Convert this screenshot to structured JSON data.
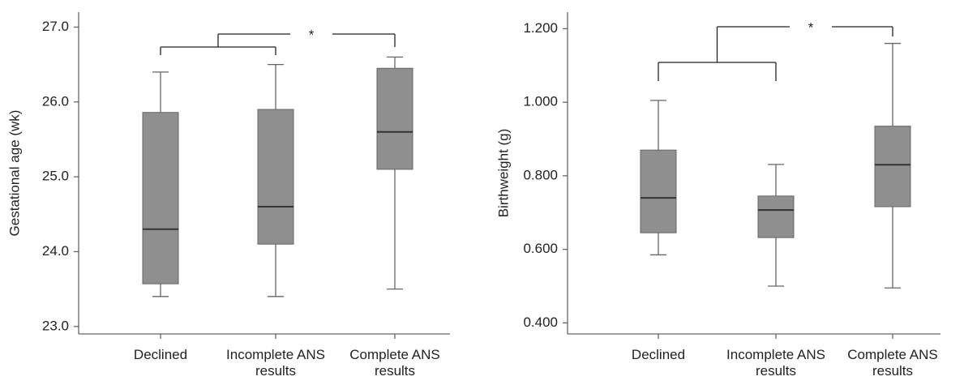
{
  "chart_data": [
    {
      "type": "box",
      "ylabel": "Gestational age (wk)",
      "categories": [
        "Declined",
        "Incomplete ANS results",
        "Complete ANS results"
      ],
      "values": [
        {
          "min": 23.4,
          "q1": 23.57,
          "median": 24.3,
          "q3": 25.86,
          "max": 26.4
        },
        {
          "min": 23.4,
          "q1": 24.1,
          "median": 24.6,
          "q3": 25.9,
          "max": 26.5
        },
        {
          "min": 23.5,
          "q1": 25.1,
          "median": 25.6,
          "q3": 26.45,
          "max": 26.6
        }
      ],
      "color": "#8f8f8f",
      "ylim": [
        22.9,
        27.2
      ],
      "yticks": [
        {
          "value": 23,
          "label": "23.0"
        },
        {
          "value": 24,
          "label": "24.0"
        },
        {
          "value": 25,
          "label": "25.0"
        },
        {
          "value": 26,
          "label": "26.0"
        },
        {
          "value": 27,
          "label": "27.0"
        }
      ],
      "annotation": "*"
    },
    {
      "type": "box",
      "ylabel": "Birthweight (g)",
      "categories": [
        "Declined",
        "Incomplete ANS results",
        "Complete ANS results"
      ],
      "values": [
        {
          "min": 0.585,
          "q1": 0.645,
          "median": 0.74,
          "q3": 0.87,
          "max": 1.005
        },
        {
          "min": 0.5,
          "q1": 0.632,
          "median": 0.707,
          "q3": 0.745,
          "max": 0.831
        },
        {
          "min": 0.495,
          "q1": 0.716,
          "median": 0.83,
          "q3": 0.935,
          "max": 1.16
        }
      ],
      "color": "#8f8f8f",
      "ylim": [
        0.37,
        1.245
      ],
      "yticks": [
        {
          "value": 0.4,
          "label": "0.400"
        },
        {
          "value": 0.6,
          "label": "0.600"
        },
        {
          "value": 0.8,
          "label": "0.800"
        },
        {
          "value": 1.0,
          "label": "1.000"
        },
        {
          "value": 1.2,
          "label": "1.200"
        }
      ],
      "annotation": "*"
    }
  ]
}
